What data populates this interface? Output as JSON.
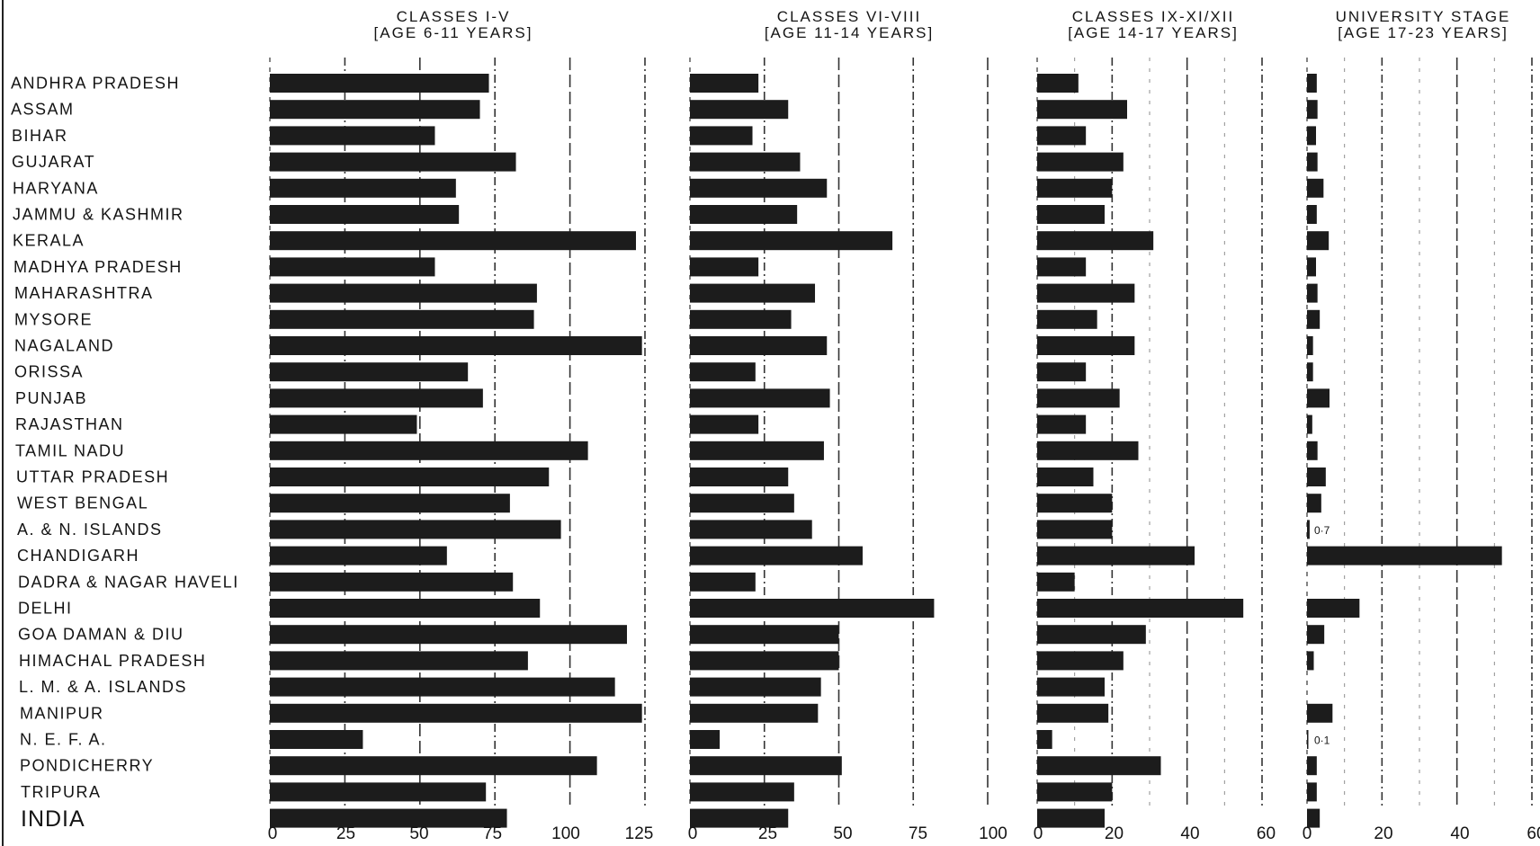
{
  "chart_data": {
    "type": "bar",
    "orientation": "horizontal",
    "categories": [
      "ANDHRA PRADESH",
      "ASSAM",
      "BIHAR",
      "GUJARAT",
      "HARYANA",
      "JAMMU & KASHMIR",
      "KERALA",
      "MADHYA PRADESH",
      "MAHARASHTRA",
      "MYSORE",
      "NAGALAND",
      "ORISSA",
      "PUNJAB",
      "RAJASTHAN",
      "TAMIL NADU",
      "UTTAR PRADESH",
      "WEST BENGAL",
      "A. & N. ISLANDS",
      "CHANDIGARH",
      "DADRA & NAGAR HAVELI",
      "DELHI",
      "GOA DAMAN & DIU",
      "HIMACHAL PRADESH",
      "L. M. & A. ISLANDS",
      "MANIPUR",
      "N. E. F. A.",
      "PONDICHERRY",
      "TRIPURA",
      "INDIA"
    ],
    "panels": [
      {
        "title_line1": "CLASSES I-V",
        "title_line2": "[AGE 6-11 YEARS]",
        "xlim": [
          0,
          125
        ],
        "tick_labels": [
          "0",
          "25",
          "50",
          "75",
          "100",
          "125"
        ],
        "values": [
          73,
          70,
          55,
          82,
          62,
          63,
          122,
          55,
          89,
          88,
          124,
          66,
          71,
          49,
          106,
          93,
          80,
          97,
          59,
          81,
          90,
          119,
          86,
          115,
          124,
          31,
          109,
          72,
          79
        ]
      },
      {
        "title_line1": "CLASSES VI-VIII",
        "title_line2": "[AGE 11-14 YEARS]",
        "xlim": [
          0,
          100
        ],
        "tick_labels": [
          "0",
          "25",
          "50",
          "75",
          "100"
        ],
        "values": [
          23,
          33,
          21,
          37,
          46,
          36,
          68,
          23,
          42,
          34,
          46,
          22,
          47,
          23,
          45,
          33,
          35,
          41,
          58,
          22,
          82,
          50,
          50,
          44,
          43,
          10,
          51,
          35,
          33
        ]
      },
      {
        "title_line1": "CLASSES IX-XI/XII",
        "title_line2": "[AGE 14-17 YEARS]",
        "xlim": [
          0,
          60
        ],
        "tick_labels": [
          "0",
          "20",
          "40",
          "60"
        ],
        "values": [
          11,
          24,
          13,
          23,
          20,
          18,
          31,
          13,
          26,
          16,
          26,
          13,
          22,
          13,
          27,
          15,
          20,
          20,
          42,
          10,
          55,
          29,
          23,
          18,
          19,
          4,
          33,
          20,
          18
        ]
      },
      {
        "title_line1": "UNIVERSITY STAGE",
        "title_line2": "[AGE 17-23 YEARS]",
        "xlim": [
          0,
          60
        ],
        "tick_labels": [
          "0",
          "20",
          "40",
          "60"
        ],
        "values": [
          2.6,
          2.8,
          2.4,
          2.8,
          4.4,
          2.6,
          5.8,
          2.4,
          2.8,
          3.4,
          1.6,
          1.6,
          6.0,
          1.4,
          2.8,
          5.0,
          3.8,
          0.7,
          52,
          0,
          14,
          4.6,
          1.8,
          0,
          6.8,
          0.1,
          2.6,
          2.6,
          3.4
        ],
        "annotations": [
          {
            "category": "A. & N. ISLANDS",
            "text": "0·7"
          },
          {
            "category": "N. E. F. A.",
            "text": "0·1"
          }
        ]
      }
    ],
    "grid": true,
    "legend": "none",
    "colors": {
      "bar": "#1c1c1c",
      "text": "#141414",
      "grid": "#333333"
    }
  }
}
